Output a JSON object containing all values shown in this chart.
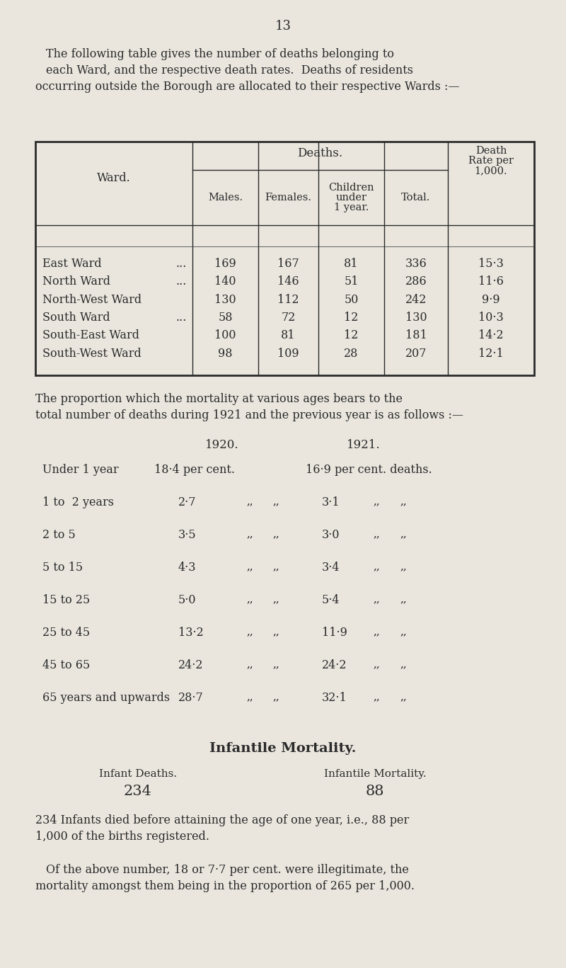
{
  "page_number": "13",
  "bg_color": "#eae6de",
  "text_color": "#2a2a2a",
  "intro_lines": [
    "The following table gives the number of deaths belonging to",
    "each Ward, and the respective death rates.  Deaths of residents",
    "occurring outside the Borough are allocated to their respective Wards :—"
  ],
  "ward_data": [
    [
      "East Ward",
      "...",
      "169",
      "167",
      "81",
      "336",
      "15·3"
    ],
    [
      "North Ward",
      "...",
      "140",
      "146",
      "51",
      "286",
      "11·6"
    ],
    [
      "North-West Ward",
      "",
      "130",
      "112",
      "50",
      "242",
      "9·9"
    ],
    [
      "South Ward",
      "...",
      "58",
      "72",
      "12",
      "130",
      "10·3"
    ],
    [
      "South-East Ward",
      "",
      "100",
      "81",
      "12",
      "181",
      "14·2"
    ],
    [
      "South-West Ward",
      "",
      "98",
      "109",
      "28",
      "207",
      "12·1"
    ]
  ],
  "prop_intro_lines": [
    "The proportion which the mortality at various ages bears to the",
    "total number of deaths during 1921 and the previous year is as follows :—"
  ],
  "prop_data": [
    [
      "Under 1 year",
      "18·4 per cent.",
      "16·9 per cent. deaths."
    ],
    [
      "1 to  2 years",
      "2·7",
      "3·1"
    ],
    [
      "2 to 5",
      "3·5",
      "3·0"
    ],
    [
      "5 to 15",
      "4·3",
      "3·4"
    ],
    [
      "15 to 25",
      "5·0",
      "5·4"
    ],
    [
      "25 to 45",
      "13·2",
      "11·9"
    ],
    [
      "45 to 65",
      "24·2",
      "24·2"
    ],
    [
      "65 years and upwards",
      "28·7",
      "32·1"
    ]
  ],
  "infantile_title": "Infantile Mortality.",
  "infant_deaths_label": "Infant Deaths.",
  "infant_deaths_value": "234",
  "infantile_mortality_label": "Infantile Mortality.",
  "infantile_mortality_value": "88",
  "para1_lines": [
    "234 Infants died before attaining the age of one year, i.e., 88 per",
    "1,000 of the births registered."
  ],
  "para2_lines": [
    "Of the above number, 18 or 7·7 per cent. were illegitimate, the",
    "mortality amongst them being in the proportion of 265 per 1,000."
  ]
}
